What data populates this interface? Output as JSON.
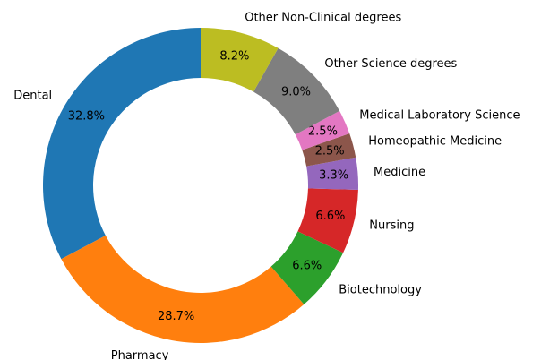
{
  "chart_data": {
    "type": "donut",
    "categories": [
      "Dental",
      "Pharmacy",
      "Biotechnology",
      "Nursing",
      "Medicine",
      "Homeopathic Medicine",
      "Medical Laboratory Science",
      "Other Science degrees",
      "Other Non-Clinical degrees"
    ],
    "values": [
      32.8,
      28.7,
      6.6,
      6.6,
      3.3,
      2.5,
      2.5,
      9.0,
      8.2
    ],
    "value_labels": [
      "32.8%",
      "28.7%",
      "6.6%",
      "6.6%",
      "3.3%",
      "2.5%",
      "2.5%",
      "9.0%",
      "8.2%"
    ],
    "colors": [
      "#1f77b4",
      "#ff7f0e",
      "#2ca02c",
      "#d62728",
      "#9467bd",
      "#8c564b",
      "#e377c2",
      "#7f7f7f",
      "#bcbd22"
    ]
  }
}
